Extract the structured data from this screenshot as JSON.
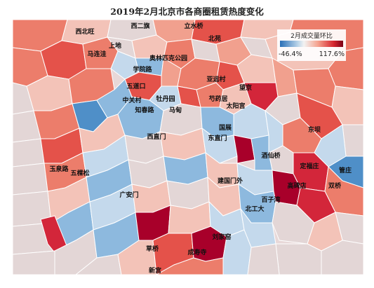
{
  "title": "2019年2月北京市各商圈租赁热度变化",
  "legend": {
    "title": "2月成交量环比",
    "min_label": "-46.4%",
    "max_label": "117.6%",
    "min_value": -46.4,
    "max_value": 117.6,
    "colors": {
      "low": "#2a6fb7",
      "mid": "#f2f2f2",
      "high": "#7b0016"
    }
  },
  "map_labels": [
    "西二旗",
    "立水桥",
    "西北旺",
    "上地",
    "北苑",
    "马连洼",
    "奥林匹克公园",
    "学院路",
    "五道口",
    "亚运村",
    "望京",
    "中关村",
    "牡丹园",
    "芍药居",
    "知春路",
    "马甸",
    "太阳宫",
    "西直门",
    "国展",
    "东直门",
    "东坝",
    "酒仙桥",
    "定福庄",
    "管庄",
    "玉泉路",
    "五棵松",
    "建国门外",
    "高碑店",
    "双桥",
    "百子湾",
    "广安门",
    "北工大",
    "刘家窑",
    "草桥",
    "成寿寺",
    "新宫"
  ]
}
